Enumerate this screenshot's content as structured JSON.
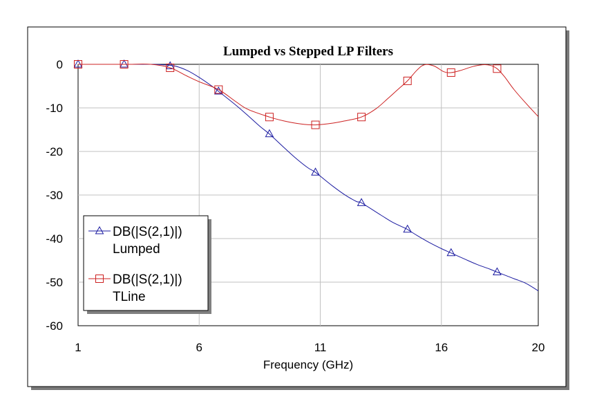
{
  "chart_data": {
    "type": "line",
    "title": "Lumped vs Stepped LP Filters",
    "xlabel": "Frequency (GHz)",
    "ylabel": "",
    "xlim": [
      1,
      20
    ],
    "ylim": [
      -60,
      0
    ],
    "x_ticks": [
      1,
      6,
      11,
      16,
      20
    ],
    "y_ticks": [
      0,
      -10,
      -20,
      -30,
      -40,
      -50,
      -60
    ],
    "x_tick_labels": [
      "1",
      "6",
      "11",
      "16",
      "20"
    ],
    "y_tick_labels": [
      "0",
      "-10",
      "-20",
      "-30",
      "-40",
      "-50",
      "-60"
    ],
    "grid": true,
    "legend_position": "bottom-left",
    "series": [
      {
        "name_line1": "DB(|S(2,1)|)",
        "name_line2": "Lumped",
        "color": "#1a1aa0",
        "marker": "triangle",
        "x": [
          1,
          2,
          3,
          4,
          4.5,
          5,
          5.5,
          6,
          6.5,
          6.8,
          7.5,
          8,
          8.5,
          8.9,
          9.5,
          10,
          10.5,
          10.8,
          11.5,
          12,
          12.5,
          12.7,
          13.5,
          14,
          14.5,
          14.6,
          15,
          15.5,
          16,
          16.4,
          17,
          17.5,
          18,
          18.3,
          19,
          19.5,
          20
        ],
        "y": [
          0,
          0,
          0,
          0,
          -0.1,
          -0.4,
          -1.4,
          -3.0,
          -4.9,
          -6.2,
          -9.3,
          -11.7,
          -14.2,
          -16.0,
          -19.1,
          -21.6,
          -23.8,
          -24.8,
          -27.9,
          -29.9,
          -31.5,
          -31.8,
          -34.6,
          -36.3,
          -37.6,
          -37.9,
          -39.3,
          -40.9,
          -42.3,
          -43.3,
          -44.8,
          -46.0,
          -47.0,
          -47.7,
          -49.2,
          -50.3,
          -52.0
        ],
        "marker_x": [
          1,
          2.9,
          4.8,
          6.8,
          8.9,
          10.8,
          12.7,
          14.6,
          16.4,
          18.3
        ],
        "marker_y": [
          0,
          0,
          -0.4,
          -6.2,
          -16.0,
          -24.8,
          -31.8,
          -37.9,
          -43.3,
          -47.7
        ]
      },
      {
        "name_line1": "DB(|S(2,1)|)",
        "name_line2": "TLine",
        "color": "#cc2020",
        "marker": "square",
        "x": [
          1,
          2,
          3,
          4,
          4.8,
          5.5,
          6,
          6.8,
          7.5,
          8,
          8.9,
          9.5,
          10.2,
          10.8,
          11.5,
          12,
          12.7,
          13.3,
          13.8,
          14.2,
          14.6,
          15,
          15.3,
          15.7,
          16.1,
          16.4,
          16.8,
          17.3,
          17.7,
          18,
          18.3,
          18.6,
          19,
          19.5,
          20
        ],
        "y": [
          0,
          0,
          0,
          0,
          -0.8,
          -2.7,
          -4.0,
          -5.8,
          -8.5,
          -10.3,
          -12.1,
          -13.0,
          -13.7,
          -13.9,
          -13.5,
          -13.0,
          -12.1,
          -10.2,
          -7.8,
          -5.8,
          -3.8,
          -1.3,
          -0.1,
          -0.4,
          -1.7,
          -1.9,
          -1.4,
          -0.5,
          -0.1,
          -0.2,
          -1.0,
          -2.8,
          -5.8,
          -9.0,
          -12.0
        ],
        "marker_x": [
          1,
          2.9,
          4.8,
          6.8,
          8.9,
          10.8,
          12.7,
          14.6,
          16.4,
          18.3
        ],
        "marker_y": [
          0,
          0,
          -0.8,
          -5.8,
          -12.1,
          -13.9,
          -12.1,
          -3.8,
          -1.9,
          -1.0
        ]
      }
    ]
  }
}
